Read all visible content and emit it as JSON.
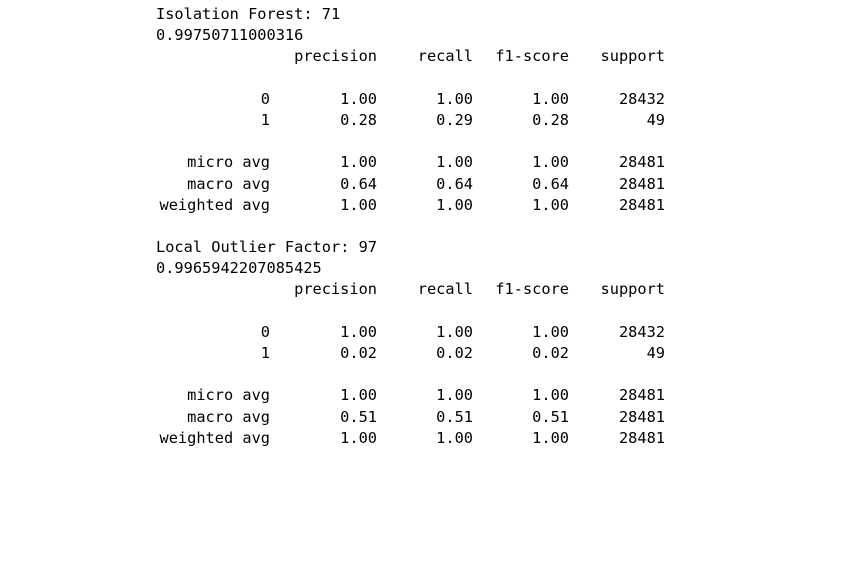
{
  "reports": [
    {
      "title": "Isolation Forest: 71",
      "accuracy": "0.99750711000316",
      "headers": [
        "precision",
        "recall",
        "f1-score",
        "support"
      ],
      "class_rows": [
        {
          "label": "0",
          "precision": "1.00",
          "recall": "1.00",
          "f1": "1.00",
          "support": "28432"
        },
        {
          "label": "1",
          "precision": "0.28",
          "recall": "0.29",
          "f1": "0.28",
          "support": "49"
        }
      ],
      "avg_rows": [
        {
          "label": "micro avg",
          "precision": "1.00",
          "recall": "1.00",
          "f1": "1.00",
          "support": "28481"
        },
        {
          "label": "macro avg",
          "precision": "0.64",
          "recall": "0.64",
          "f1": "0.64",
          "support": "28481"
        },
        {
          "label": "weighted avg",
          "precision": "1.00",
          "recall": "1.00",
          "f1": "1.00",
          "support": "28481"
        }
      ]
    },
    {
      "title": "Local Outlier Factor: 97",
      "accuracy": "0.9965942207085425",
      "headers": [
        "precision",
        "recall",
        "f1-score",
        "support"
      ],
      "class_rows": [
        {
          "label": "0",
          "precision": "1.00",
          "recall": "1.00",
          "f1": "1.00",
          "support": "28432"
        },
        {
          "label": "1",
          "precision": "0.02",
          "recall": "0.02",
          "f1": "0.02",
          "support": "49"
        }
      ],
      "avg_rows": [
        {
          "label": "micro avg",
          "precision": "1.00",
          "recall": "1.00",
          "f1": "1.00",
          "support": "28481"
        },
        {
          "label": "macro avg",
          "precision": "0.51",
          "recall": "0.51",
          "f1": "0.51",
          "support": "28481"
        },
        {
          "label": "weighted avg",
          "precision": "1.00",
          "recall": "1.00",
          "f1": "1.00",
          "support": "28481"
        }
      ]
    }
  ]
}
